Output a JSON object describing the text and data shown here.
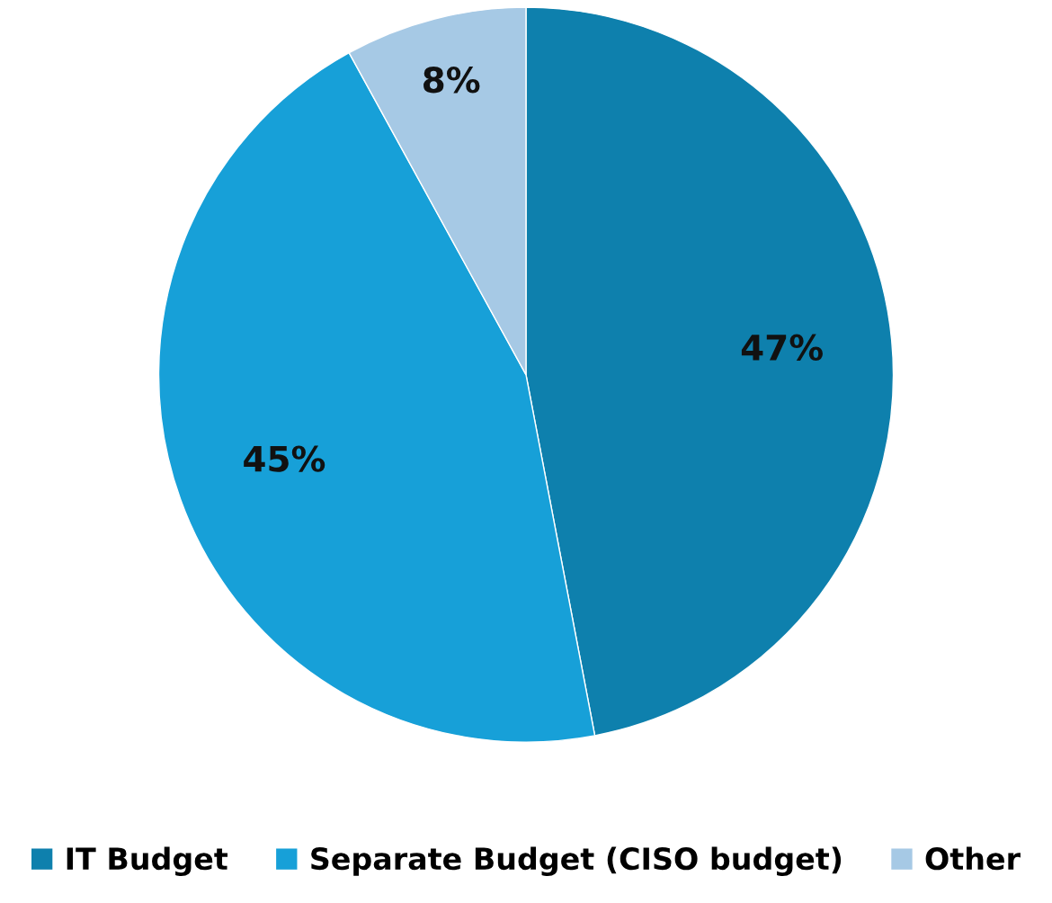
{
  "chart_data": {
    "type": "pie",
    "categories": [
      "IT Budget",
      "Separate Budget (CISO budget)",
      "Other"
    ],
    "values": [
      47,
      45,
      8
    ],
    "colors": [
      "#0e80ad",
      "#17a0d8",
      "#a6c9e5"
    ],
    "value_labels": [
      "47%",
      "45%",
      "8%"
    ],
    "legend": "bottom"
  }
}
